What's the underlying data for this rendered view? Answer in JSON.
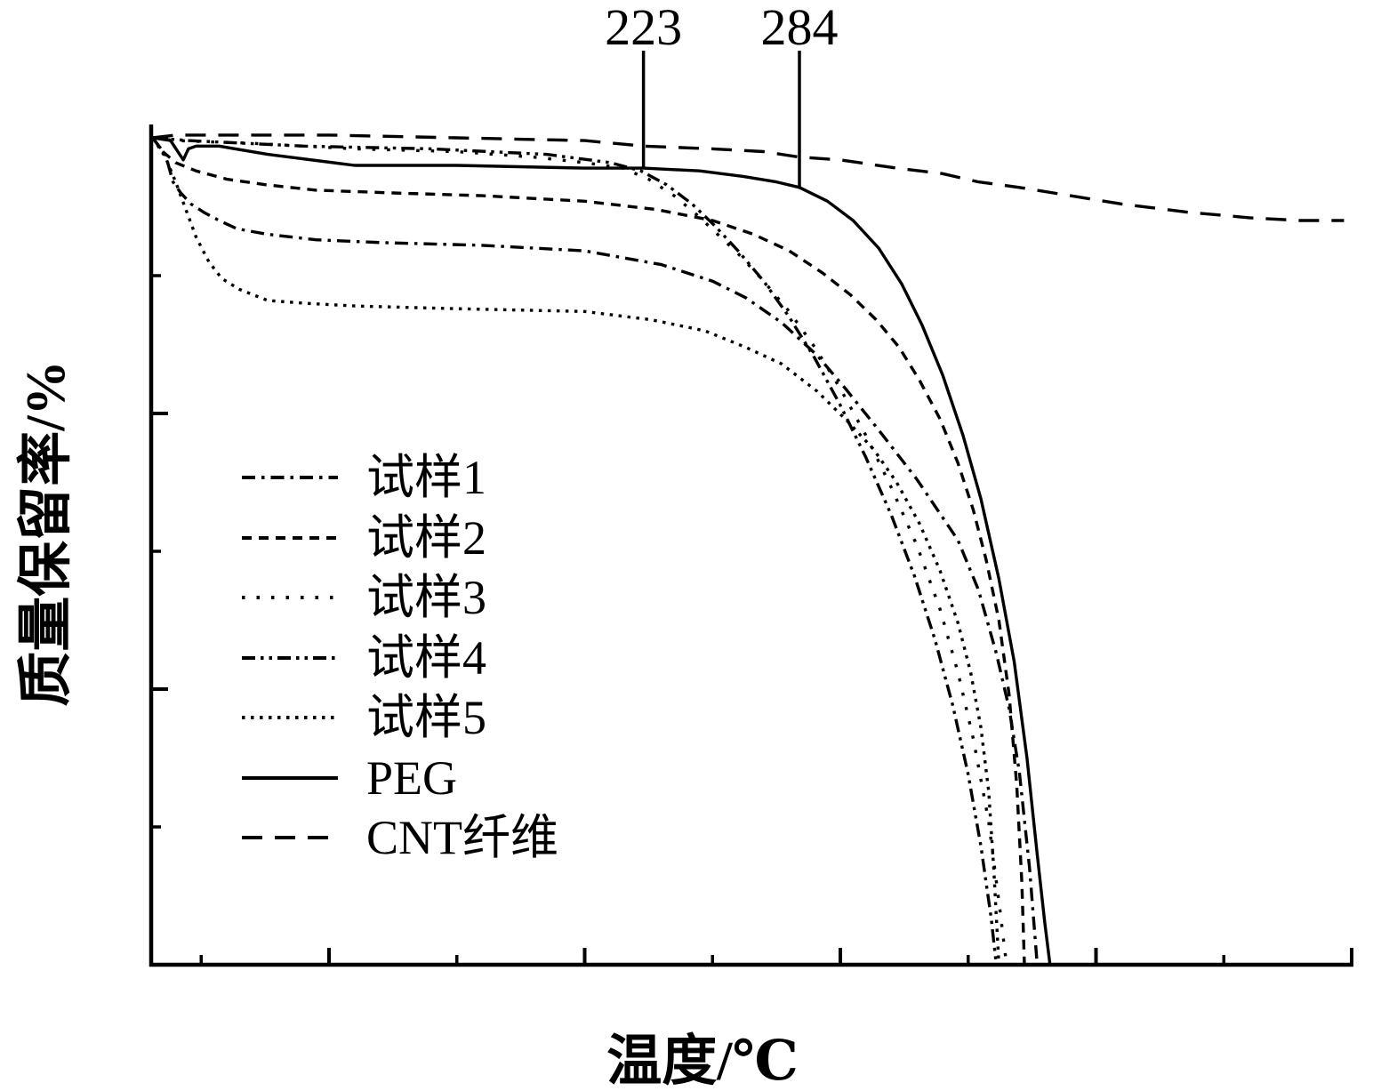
{
  "figure": {
    "background": "#ffffff",
    "ink": "#000000"
  },
  "chart_data": {
    "type": "line",
    "title": "",
    "xlabel": "温度/℃",
    "ylabel": "质量保留率/%",
    "xlim": [
      30,
      500
    ],
    "ylim": [
      70,
      100.6
    ],
    "x_ticks": [
      100,
      200,
      300,
      400,
      500
    ],
    "x_minor_ticks": [
      50,
      150,
      250,
      350,
      450
    ],
    "y_ticks": [
      70,
      80,
      90,
      100
    ],
    "y_minor_ticks": [
      75,
      85,
      95
    ],
    "grid": false,
    "legend_position": "center-left",
    "annotations": [
      {
        "label": "223",
        "x": 223
      },
      {
        "label": "284",
        "x": 284
      }
    ],
    "series": [
      {
        "name": "试样1",
        "line_style": "dash-dot",
        "dasharray": "15 7 3.5 7",
        "points": [
          [
            31,
            100
          ],
          [
            36,
            99.4
          ],
          [
            39,
            98.4
          ],
          [
            42,
            98
          ],
          [
            46,
            97.6
          ],
          [
            51,
            97.3
          ],
          [
            57,
            97
          ],
          [
            64,
            96.7
          ],
          [
            76,
            96.5
          ],
          [
            95,
            96.3
          ],
          [
            120,
            96.2
          ],
          [
            160,
            96.1
          ],
          [
            200,
            95.9
          ],
          [
            230,
            95.4
          ],
          [
            250,
            94.8
          ],
          [
            263,
            94.2
          ],
          [
            277,
            93.3
          ],
          [
            291,
            92.1
          ],
          [
            302,
            90.9
          ],
          [
            315,
            89.4
          ],
          [
            330,
            87.6
          ],
          [
            346,
            85.4
          ],
          [
            354,
            83.6
          ],
          [
            361,
            81.3
          ],
          [
            366,
            79.3
          ],
          [
            370,
            77
          ],
          [
            374,
            73.5
          ],
          [
            377,
            70
          ]
        ]
      },
      {
        "name": "试样2",
        "line_style": "dashed",
        "dasharray": "11 8",
        "points": [
          [
            31,
            100
          ],
          [
            35,
            99.5
          ],
          [
            40,
            99.1
          ],
          [
            48,
            98.8
          ],
          [
            60,
            98.5
          ],
          [
            75,
            98.3
          ],
          [
            95,
            98.1
          ],
          [
            125,
            98
          ],
          [
            160,
            97.9
          ],
          [
            200,
            97.7
          ],
          [
            228,
            97.4
          ],
          [
            250,
            97
          ],
          [
            266,
            96.5
          ],
          [
            280,
            95.9
          ],
          [
            293,
            95.1
          ],
          [
            304,
            94.3
          ],
          [
            314,
            93.4
          ],
          [
            323,
            92.4
          ],
          [
            331,
            91.2
          ],
          [
            339,
            89.8
          ],
          [
            346,
            88.2
          ],
          [
            352,
            86.5
          ],
          [
            357,
            84.7
          ],
          [
            362,
            82.5
          ],
          [
            366,
            79.8
          ],
          [
            369,
            76.5
          ],
          [
            371,
            73
          ],
          [
            372,
            70
          ]
        ]
      },
      {
        "name": "试样3",
        "line_style": "dotted-sparse",
        "dasharray": "3.5 13",
        "points": [
          [
            31,
            100
          ],
          [
            40,
            99.9
          ],
          [
            70,
            99.8
          ],
          [
            110,
            99.6
          ],
          [
            150,
            99.5
          ],
          [
            180,
            99.3
          ],
          [
            200,
            99.1
          ],
          [
            215,
            98.9
          ],
          [
            225,
            98.5
          ],
          [
            235,
            97.9
          ],
          [
            244,
            97.2
          ],
          [
            252,
            96.5
          ],
          [
            260,
            95.8
          ],
          [
            270,
            94.8
          ],
          [
            280,
            93.7
          ],
          [
            290,
            92.4
          ],
          [
            300,
            90.9
          ],
          [
            310,
            89.2
          ],
          [
            320,
            87.3
          ],
          [
            330,
            85.2
          ],
          [
            339,
            82.9
          ],
          [
            346,
            80.6
          ],
          [
            352,
            78.2
          ],
          [
            358,
            75.2
          ],
          [
            362,
            72.3
          ],
          [
            365,
            70
          ]
        ]
      },
      {
        "name": "试样4",
        "line_style": "dash-dot-dot",
        "dasharray": "15 6 3.5 6 3.5 6",
        "points": [
          [
            31,
            100
          ],
          [
            45,
            99.9
          ],
          [
            90,
            99.7
          ],
          [
            140,
            99.6
          ],
          [
            185,
            99.4
          ],
          [
            210,
            99.1
          ],
          [
            222,
            98.8
          ],
          [
            232,
            98.3
          ],
          [
            242,
            97.6
          ],
          [
            251,
            96.8
          ],
          [
            260,
            95.9
          ],
          [
            270,
            94.8
          ],
          [
            280,
            93.5
          ],
          [
            290,
            92
          ],
          [
            300,
            90.3
          ],
          [
            310,
            88.4
          ],
          [
            320,
            86.3
          ],
          [
            329,
            84.1
          ],
          [
            337,
            81.8
          ],
          [
            344,
            79.4
          ],
          [
            350,
            76.9
          ],
          [
            355,
            74.3
          ],
          [
            359,
            71.7
          ],
          [
            361,
            70
          ]
        ]
      },
      {
        "name": "试样5",
        "line_style": "dotted-dense",
        "dasharray": "3.5 6.5",
        "points": [
          [
            31,
            100
          ],
          [
            36,
            99.3
          ],
          [
            40,
            98.4
          ],
          [
            44,
            97.4
          ],
          [
            48,
            96.4
          ],
          [
            53,
            95.5
          ],
          [
            58,
            94.9
          ],
          [
            65,
            94.5
          ],
          [
            76,
            94.1
          ],
          [
            90,
            94
          ],
          [
            110,
            93.9
          ],
          [
            150,
            93.8
          ],
          [
            200,
            93.7
          ],
          [
            226,
            93.4
          ],
          [
            247,
            93
          ],
          [
            263,
            92.4
          ],
          [
            277,
            91.8
          ],
          [
            291,
            90.8
          ],
          [
            303,
            89.7
          ],
          [
            313,
            88.7
          ],
          [
            322,
            87.5
          ],
          [
            331,
            86
          ],
          [
            339,
            84.3
          ],
          [
            346,
            82.4
          ],
          [
            351,
            80.6
          ],
          [
            355,
            78.6
          ],
          [
            358,
            76.3
          ],
          [
            360,
            73.5
          ],
          [
            362,
            70
          ]
        ]
      },
      {
        "name": "PEG",
        "line_style": "solid",
        "dasharray": "",
        "points": [
          [
            31,
            100
          ],
          [
            38,
            99.9
          ],
          [
            43,
            99.2
          ],
          [
            45,
            99.6
          ],
          [
            48,
            99.7
          ],
          [
            57,
            99.7
          ],
          [
            76,
            99.4
          ],
          [
            110,
            99
          ],
          [
            150,
            99
          ],
          [
            200,
            98.9
          ],
          [
            223,
            98.9
          ],
          [
            245,
            98.8
          ],
          [
            262,
            98.6
          ],
          [
            275,
            98.4
          ],
          [
            284,
            98.2
          ],
          [
            295,
            97.7
          ],
          [
            305,
            97
          ],
          [
            315,
            96
          ],
          [
            324,
            94.7
          ],
          [
            332,
            93.2
          ],
          [
            340,
            91.4
          ],
          [
            348,
            89.2
          ],
          [
            355,
            86.9
          ],
          [
            362,
            84
          ],
          [
            368,
            81
          ],
          [
            373,
            77.5
          ],
          [
            377,
            74
          ],
          [
            380,
            71.5
          ],
          [
            382,
            70
          ]
        ]
      },
      {
        "name": "CNT纤维",
        "line_style": "long-dash",
        "dasharray": "23 14",
        "points": [
          [
            31,
            100
          ],
          [
            40,
            100.1
          ],
          [
            60,
            100.1
          ],
          [
            100,
            100.1
          ],
          [
            150,
            100
          ],
          [
            200,
            99.9
          ],
          [
            223,
            99.7
          ],
          [
            250,
            99.6
          ],
          [
            270,
            99.5
          ],
          [
            284,
            99.3
          ],
          [
            300,
            99.2
          ],
          [
            322,
            98.9
          ],
          [
            340,
            98.7
          ],
          [
            354,
            98.4
          ],
          [
            370,
            98.2
          ],
          [
            390,
            97.9
          ],
          [
            410,
            97.6
          ],
          [
            436,
            97.3
          ],
          [
            460,
            97.1
          ],
          [
            480,
            97
          ],
          [
            497,
            97
          ]
        ]
      }
    ]
  }
}
